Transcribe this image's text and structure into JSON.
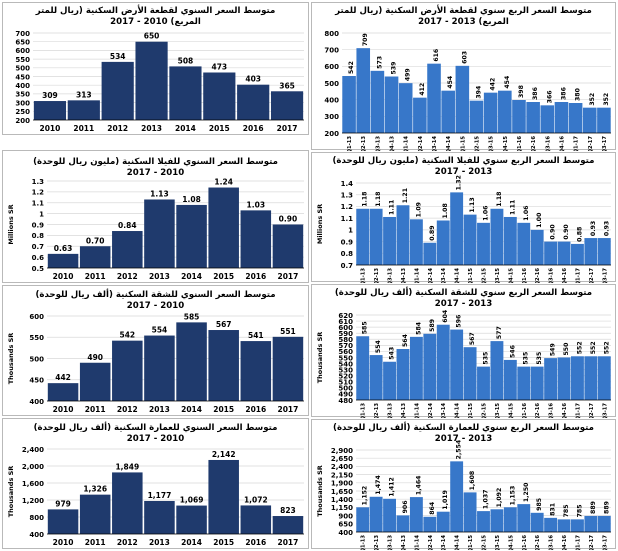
{
  "colors": {
    "annual": "#1f3a6d",
    "quarterly": "#3777c9",
    "grid": "#d9d9d9",
    "axis": "#000000"
  },
  "chart_data": [
    {
      "id": "land-annual",
      "type": "bar",
      "period": "annual",
      "title_line1": "متوسط السعر السنوي لقطعة الأرض السكنية (ريال للمتر",
      "title_line2": "المربع) 2010 - 2017",
      "ylabel": "",
      "ylim": [
        200,
        700
      ],
      "yticks": [
        200,
        250,
        300,
        350,
        400,
        450,
        500,
        550,
        600,
        650,
        700
      ],
      "ytick_labels": [
        "200",
        "250",
        "300",
        "350",
        "400",
        "450",
        "500",
        "550",
        "600",
        "650",
        "700"
      ],
      "categories": [
        "2010",
        "2011",
        "2012",
        "2013",
        "2014",
        "2015",
        "2016",
        "2017"
      ],
      "values": [
        309,
        313,
        534,
        650,
        508,
        473,
        403,
        365
      ],
      "value_labels": [
        "309",
        "313",
        "534",
        "650",
        "508",
        "473",
        "403",
        "365"
      ]
    },
    {
      "id": "land-quarterly",
      "type": "bar",
      "period": "quarterly",
      "title_line1": "متوسط السعر الربع سنوي لقطعة الأرض السكنية (ريال للمتر",
      "title_line2": "المربع) 2013 - 2017",
      "ylabel": "",
      "ylim": [
        200,
        800
      ],
      "yticks": [
        200,
        300,
        400,
        500,
        600,
        700,
        800
      ],
      "ytick_labels": [
        "200",
        "300",
        "400",
        "500",
        "600",
        "700",
        "800"
      ],
      "categories": [
        "Q1-13",
        "Q2-13",
        "Q3-13",
        "Q4-13",
        "Q1-14",
        "Q2-14",
        "Q3-14",
        "Q4-14",
        "Q1-15",
        "Q2-15",
        "Q3-15",
        "Q4-15",
        "Q1-16",
        "Q2-16",
        "Q3-16",
        "Q4-16",
        "Q1-17",
        "Q2-17",
        "Q3-17"
      ],
      "values": [
        542,
        709,
        573,
        539,
        499,
        412,
        616,
        454,
        603,
        394,
        442,
        454,
        398,
        386,
        366,
        386,
        380,
        352,
        352
      ],
      "value_labels": [
        "542",
        "709",
        "573",
        "539",
        "499",
        "412",
        "616",
        "454",
        "603",
        "394",
        "442",
        "454",
        "398",
        "386",
        "366",
        "386",
        "380",
        "352",
        "352"
      ]
    },
    {
      "id": "villa-annual",
      "type": "bar",
      "period": "annual",
      "title_line1": "متوسط السعر السنوي للفيلا السكنية (مليون ريال للوحدة)",
      "title_line2": "2017 - 2010",
      "ylabel": "Millions SR",
      "ylim": [
        0.5,
        1.3
      ],
      "yticks": [
        0.5,
        0.6,
        0.7,
        0.8,
        0.9,
        1.0,
        1.1,
        1.2,
        1.3
      ],
      "ytick_labels": [
        "0.5",
        "0.6",
        "0.7",
        "0.8",
        "0.9",
        "1",
        "1.1",
        "1.2",
        "1.3"
      ],
      "categories": [
        "2010",
        "2011",
        "2012",
        "2013",
        "2014",
        "2015",
        "2016",
        "2017"
      ],
      "values": [
        0.63,
        0.7,
        0.84,
        1.13,
        1.08,
        1.24,
        1.03,
        0.9
      ],
      "value_labels": [
        "0.63",
        "0.70",
        "0.84",
        "1.13",
        "1.08",
        "1.24",
        "1.03",
        "0.90"
      ]
    },
    {
      "id": "villa-quarterly",
      "type": "bar",
      "period": "quarterly",
      "title_line1": "متوسط السعر الربع سنوي للفيلا السكنية (مليون ريال للوحدة)",
      "title_line2": "2017 - 2013",
      "ylabel": "Millions SR",
      "ylim": [
        0.7,
        1.4
      ],
      "yticks": [
        0.7,
        0.8,
        0.9,
        1.0,
        1.1,
        1.2,
        1.3,
        1.4
      ],
      "ytick_labels": [
        "0.7",
        "0.8",
        "0.9",
        "1",
        "1.1",
        "1.2",
        "1.3",
        "1.4"
      ],
      "categories": [
        "Q1-13",
        "Q2-13",
        "Q3-13",
        "Q4-13",
        "Q1-14",
        "Q2-14",
        "Q3-14",
        "Q4-14",
        "Q1-15",
        "Q2-15",
        "Q3-15",
        "Q4-15",
        "Q1-16",
        "Q2-16",
        "Q3-16",
        "Q4-16",
        "Q1-17",
        "Q2-17",
        "Q3-17"
      ],
      "values": [
        1.18,
        1.18,
        1.11,
        1.21,
        1.09,
        0.89,
        1.08,
        1.32,
        1.13,
        1.06,
        1.18,
        1.11,
        1.06,
        1.0,
        0.9,
        0.9,
        0.88,
        0.93,
        0.93
      ],
      "value_labels": [
        "1.18",
        "1.18",
        "1.11",
        "1.21",
        "1.09",
        "0.89",
        "1.08",
        "1.32",
        "1.13",
        "1.06",
        "1.18",
        "1.11",
        "1.06",
        "1.00",
        "0.90",
        "0.90",
        "0.88",
        "0.93",
        "0.93"
      ]
    },
    {
      "id": "apartment-annual",
      "type": "bar",
      "period": "annual",
      "title_line1": "متوسط السعر السنوي للشقة السكنية (ألف ريال للوحدة)",
      "title_line2": "2017 - 2010",
      "ylabel": "Thousands SR",
      "ylim": [
        400,
        600
      ],
      "yticks": [
        400,
        450,
        500,
        550,
        600
      ],
      "ytick_labels": [
        "400",
        "450",
        "500",
        "550",
        "600"
      ],
      "categories": [
        "2010",
        "2011",
        "2012",
        "2013",
        "2014",
        "2015",
        "2016",
        "2017"
      ],
      "values": [
        442,
        490,
        542,
        554,
        585,
        567,
        541,
        551
      ],
      "value_labels": [
        "442",
        "490",
        "542",
        "554",
        "585",
        "567",
        "541",
        "551"
      ]
    },
    {
      "id": "apartment-quarterly",
      "type": "bar",
      "period": "quarterly",
      "title_line1": "متوسط السعر الربع سنوي للشقة السكنية (ألف ريال للوحدة)",
      "title_line2": "2017 - 2013",
      "ylabel": "Thousands SR",
      "ylim": [
        480,
        620
      ],
      "yticks": [
        480,
        490,
        500,
        510,
        520,
        530,
        540,
        550,
        560,
        570,
        580,
        590,
        600,
        610,
        620
      ],
      "ytick_labels": [
        "480",
        "490",
        "500",
        "510",
        "520",
        "530",
        "540",
        "550",
        "560",
        "570",
        "580",
        "590",
        "600",
        "610",
        "620"
      ],
      "categories": [
        "Q1-13",
        "Q2-13",
        "Q3-13",
        "Q4-13",
        "Q1-14",
        "Q2-14",
        "Q3-14",
        "Q4-14",
        "Q1-15",
        "Q2-15",
        "Q3-15",
        "Q4-15",
        "Q1-16",
        "Q2-16",
        "Q3-16",
        "Q4-16",
        "Q1-17",
        "Q2-17",
        "Q3-17"
      ],
      "values": [
        585,
        554,
        543,
        564,
        584,
        589,
        604,
        596,
        567,
        535,
        577,
        546,
        535,
        535,
        549,
        550,
        552,
        552,
        552
      ],
      "value_labels": [
        "585",
        "554",
        "543",
        "564",
        "584",
        "589",
        "604",
        "596",
        "567",
        "535",
        "577",
        "546",
        "535",
        "535",
        "549",
        "550",
        "552",
        "552",
        "552"
      ]
    },
    {
      "id": "building-annual",
      "type": "bar",
      "period": "annual",
      "title_line1": "متوسط السعر السنوي للعمارة السكنية (ألف ريال للوحدة)",
      "title_line2": "2017 - 2010",
      "ylabel": "Thousands SR",
      "ylim": [
        400,
        2400
      ],
      "yticks": [
        400,
        800,
        1200,
        1600,
        2000,
        2400
      ],
      "ytick_labels": [
        "400",
        "800",
        "1,200",
        "1,600",
        "2,000",
        "2,400"
      ],
      "categories": [
        "2010",
        "2011",
        "2012",
        "2013",
        "2014",
        "2015",
        "2016",
        "2017"
      ],
      "values": [
        979,
        1326,
        1849,
        1177,
        1069,
        2142,
        1072,
        823
      ],
      "value_labels": [
        "979",
        "1,326",
        "1,849",
        "1,177",
        "1,069",
        "2,142",
        "1,072",
        "823"
      ]
    },
    {
      "id": "building-quarterly",
      "type": "bar",
      "period": "quarterly",
      "title_line1": "متوسط السعر الربع سنوي للعمارة السكنية (ألف ريال للوحدة)",
      "title_line2": "2017 - 2013",
      "ylabel": "Thousands SR",
      "ylim": [
        400,
        2900
      ],
      "yticks": [
        400,
        650,
        900,
        1150,
        1400,
        1650,
        1900,
        2150,
        2400,
        2650,
        2900
      ],
      "ytick_labels": [
        "400",
        "650",
        "900",
        "1,150",
        "1,400",
        "1,650",
        "1,900",
        "2,150",
        "2,400",
        "2,650",
        "2,900"
      ],
      "categories": [
        "Q1-13",
        "Q2-13",
        "Q3-13",
        "Q4-13",
        "Q1-14",
        "Q2-14",
        "Q3-14",
        "Q4-14",
        "Q1-15",
        "Q2-15",
        "Q3-15",
        "Q4-15",
        "Q1-16",
        "Q2-16",
        "Q3-16",
        "Q4-16",
        "Q1-17",
        "Q2-17",
        "Q3-17"
      ],
      "values": [
        1152,
        1474,
        1412,
        906,
        1464,
        864,
        1019,
        2554,
        1608,
        1037,
        1092,
        1153,
        1250,
        985,
        831,
        785,
        785,
        889,
        889
      ],
      "value_labels": [
        "1,152",
        "1,474",
        "1,412",
        "906",
        "1,464",
        "864",
        "1,019",
        "2,554",
        "1,608",
        "1,037",
        "1,092",
        "1,153",
        "1,250",
        "985",
        "831",
        "785",
        "785",
        "889",
        "889"
      ]
    }
  ]
}
